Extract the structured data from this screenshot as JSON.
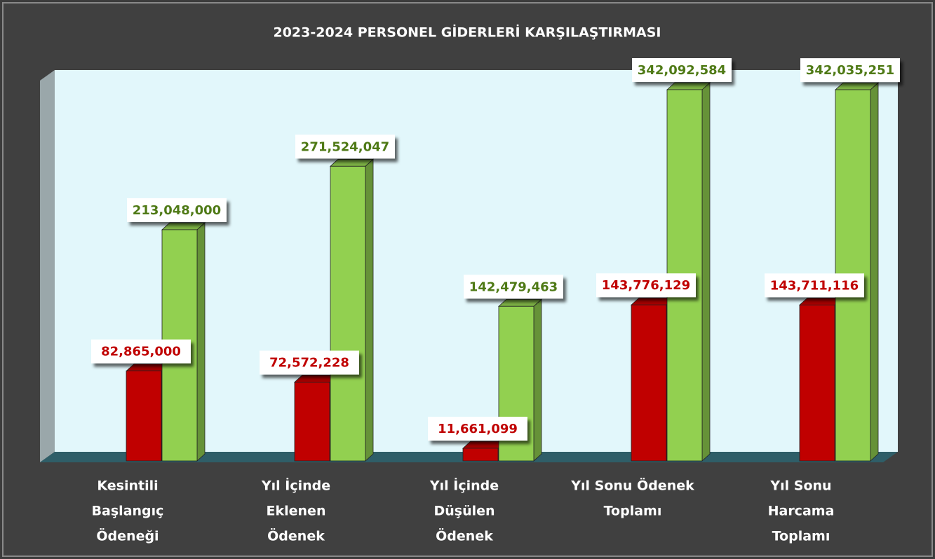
{
  "chart_data": {
    "type": "bar3d",
    "title": "2023-2024 PERSONEL GİDERLERİ KARŞILAŞTIRMASI",
    "categories": [
      [
        "Kesintili",
        "Başlangıç",
        "Ödeneği"
      ],
      [
        "Yıl İçinde",
        "Eklenen",
        "Ödenek"
      ],
      [
        "Yıl İçinde",
        "Düşülen",
        "Ödenek"
      ],
      [
        "Yıl Sonu Ödenek",
        "Toplamı"
      ],
      [
        "Yıl Sonu",
        "Harcama",
        "Toplamı"
      ]
    ],
    "series": [
      {
        "color": "#c00000",
        "values": [
          82865000,
          72572228,
          11661099,
          143776129,
          143711116
        ],
        "value_labels": [
          "82,865,000",
          "72,572,228",
          "11,661,099",
          "143,776,129",
          "143,711,116"
        ],
        "label_color": "#c00000"
      },
      {
        "color": "#92d050",
        "values": [
          213048000,
          271524047,
          142479463,
          342092584,
          342035251
        ],
        "value_labels": [
          "213,048,000",
          "271,524,047",
          "142,479,463",
          "342,092,584",
          "342,035,251"
        ],
        "label_color": "#4f7a16"
      }
    ]
  }
}
